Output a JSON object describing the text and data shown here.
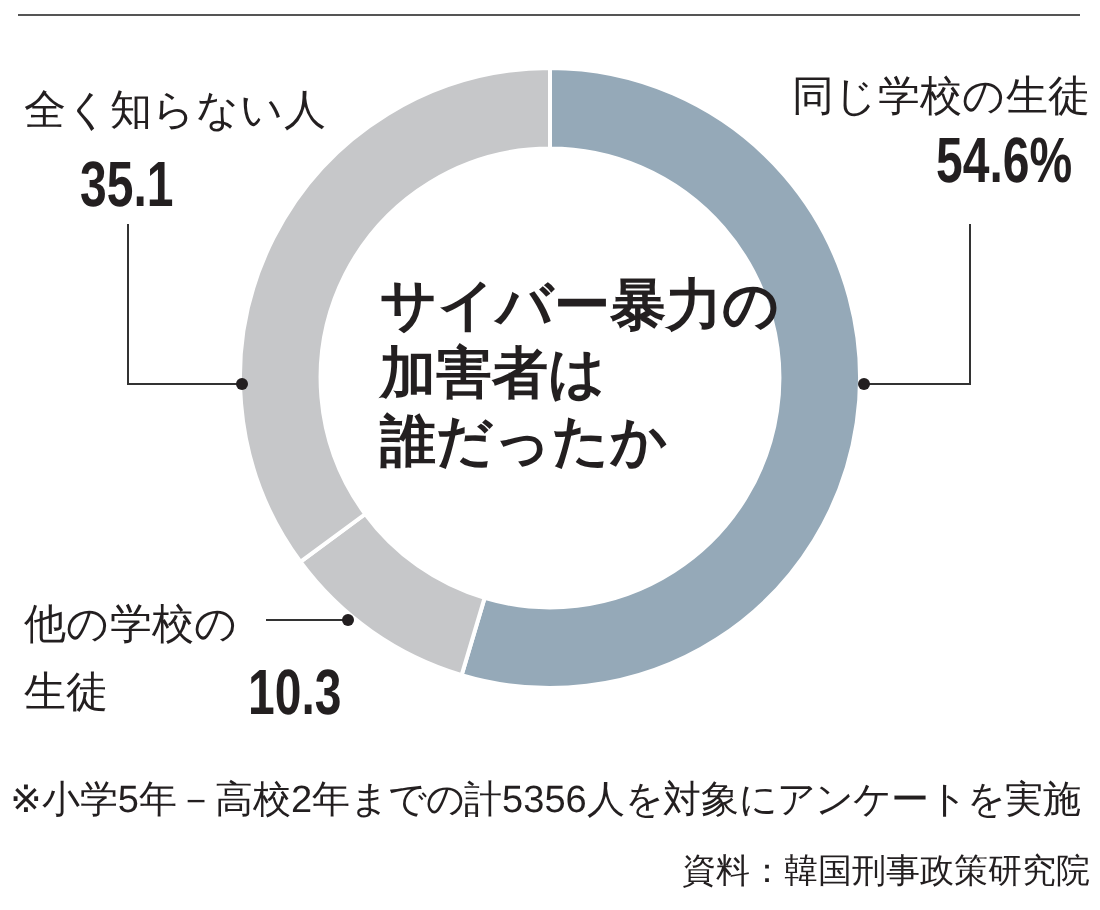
{
  "chart_data": {
    "type": "donut",
    "title": "サイバー暴力の加害者は誰だったか",
    "categories": [
      "同じ学校の生徒",
      "他の学校の生徒",
      "全く知らない人"
    ],
    "values": [
      54.6,
      10.3,
      35.1
    ],
    "colors": [
      "#95a9b8",
      "#c6c7c9",
      "#c6c7c9"
    ],
    "value_labels": [
      "54.6%",
      "10.3",
      "35.1"
    ],
    "annotations": [
      "※小学5年－高校2年までの計5356人を対象にアンケートを実施",
      "資料：韓国刑事政策研究院"
    ]
  }
}
